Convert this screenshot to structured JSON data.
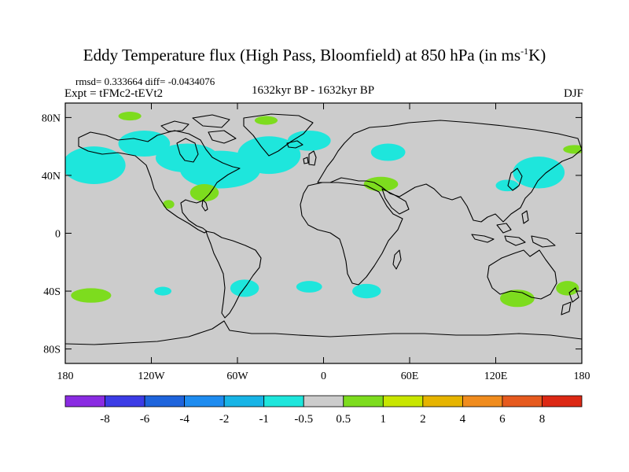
{
  "title": {
    "main": "Eddy Temperature flux (High Pass, Bloomfield) at 850 hPa (in ms",
    "sup": "-1",
    "tail": "K)"
  },
  "stats": "rmsd= 0.333664 diff= -0.0434076",
  "expt": "Expt = tFMc2-tEVt2",
  "period": "1632kyr BP - 1632kyr BP",
  "season": "DJF",
  "axes": {
    "lat_ticks": [
      "80N",
      "40N",
      "0",
      "40S",
      "80S"
    ],
    "lon_ticks": [
      "180",
      "120W",
      "60W",
      "0",
      "60E",
      "120E",
      "180"
    ]
  },
  "colorbar": {
    "labels": [
      "-8",
      "-6",
      "-4",
      "-2",
      "-1",
      "-0.5",
      "0.5",
      "1",
      "2",
      "4",
      "6",
      "8"
    ],
    "colors": [
      "#8a2be2",
      "#3c3ce6",
      "#1e64dc",
      "#1e8cf0",
      "#17b4e6",
      "#1ee6dc",
      "#cccccc",
      "#7ddc1e",
      "#c8e600",
      "#e6b400",
      "#f08c1e",
      "#e65a1e",
      "#dc2814"
    ]
  },
  "map": {
    "background": "#cccccc",
    "land_outline": "#000000",
    "blobs": [
      {
        "cls": "neg",
        "lon": -160,
        "lat": 47,
        "rx": 22,
        "ry": 13
      },
      {
        "cls": "neg",
        "lon": -125,
        "lat": 62,
        "rx": 18,
        "ry": 9
      },
      {
        "cls": "neg",
        "lon": -95,
        "lat": 52,
        "rx": 22,
        "ry": 10
      },
      {
        "cls": "neg",
        "lon": -72,
        "lat": 44,
        "rx": 28,
        "ry": 13
      },
      {
        "cls": "neg",
        "lon": -38,
        "lat": 54,
        "rx": 22,
        "ry": 13
      },
      {
        "cls": "neg",
        "lon": -10,
        "lat": 64,
        "rx": 15,
        "ry": 7
      },
      {
        "cls": "neg",
        "lon": 45,
        "lat": 56,
        "rx": 12,
        "ry": 6
      },
      {
        "cls": "neg",
        "lon": 150,
        "lat": 42,
        "rx": 18,
        "ry": 11
      },
      {
        "cls": "neg",
        "lon": 128,
        "lat": 33,
        "rx": 8,
        "ry": 4
      },
      {
        "cls": "neg",
        "lon": -55,
        "lat": -38,
        "rx": 10,
        "ry": 6
      },
      {
        "cls": "neg",
        "lon": -10,
        "lat": -37,
        "rx": 9,
        "ry": 4
      },
      {
        "cls": "neg",
        "lon": 30,
        "lat": -40,
        "rx": 10,
        "ry": 5
      },
      {
        "cls": "neg",
        "lon": -112,
        "lat": -40,
        "rx": 6,
        "ry": 3
      },
      {
        "cls": "pos",
        "lon": -162,
        "lat": -43,
        "rx": 14,
        "ry": 5
      },
      {
        "cls": "pos",
        "lon": -83,
        "lat": 28,
        "rx": 10,
        "ry": 6
      },
      {
        "cls": "pos",
        "lon": -108,
        "lat": 20,
        "rx": 4,
        "ry": 3
      },
      {
        "cls": "pos",
        "lon": 40,
        "lat": 34,
        "rx": 12,
        "ry": 5
      },
      {
        "cls": "pos",
        "lon": 135,
        "lat": -45,
        "rx": 12,
        "ry": 6
      },
      {
        "cls": "pos",
        "lon": 170,
        "lat": -38,
        "rx": 8,
        "ry": 5
      },
      {
        "cls": "pos",
        "lon": 175,
        "lat": 58,
        "rx": 8,
        "ry": 3
      },
      {
        "cls": "pos",
        "lon": -135,
        "lat": 81,
        "rx": 8,
        "ry": 3
      },
      {
        "cls": "pos",
        "lon": -40,
        "lat": 78,
        "rx": 8,
        "ry": 3
      }
    ]
  }
}
